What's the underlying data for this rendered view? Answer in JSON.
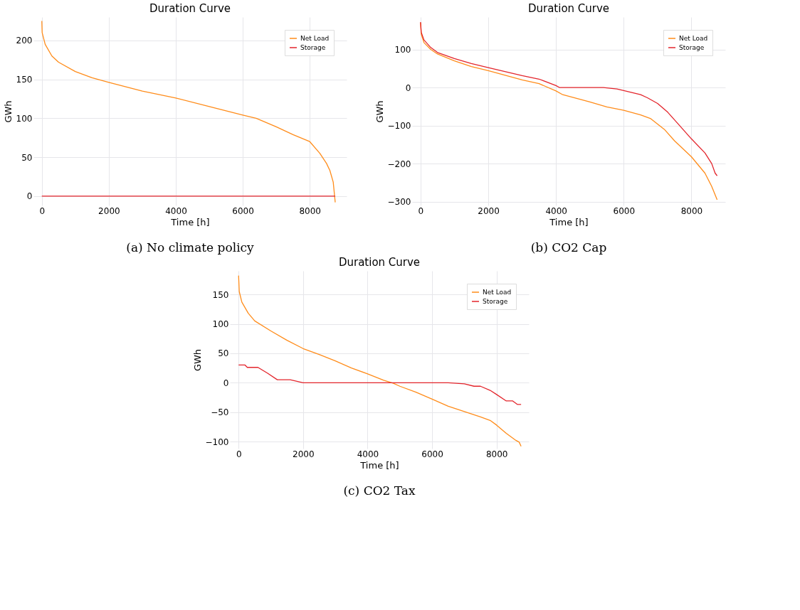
{
  "chart_data": [
    {
      "type": "line",
      "title": "Duration Curve",
      "xlabel": "Time [h]",
      "ylabel": "GWh",
      "annotations": [
        "(a) No climate policy"
      ],
      "xlim": [
        -250,
        9100
      ],
      "xticks": [
        0,
        2000,
        4000,
        6000,
        8000
      ],
      "ylim": [
        -12,
        230
      ],
      "yticks": [
        0,
        50,
        100,
        150,
        200
      ],
      "grid": true,
      "legend": "top right",
      "series": [
        {
          "name": "Net Load",
          "color": "#ff8c1a",
          "x": [
            0,
            10,
            100,
            300,
            500,
            1000,
            1500,
            2000,
            3000,
            4000,
            5000,
            6000,
            6400,
            7000,
            7500,
            8000,
            8300,
            8500,
            8600,
            8700,
            8760
          ],
          "values": [
            225,
            210,
            195,
            180,
            172,
            160,
            152,
            146,
            135,
            126,
            115,
            104,
            100,
            89,
            79,
            70,
            55,
            42,
            33,
            18,
            -8
          ]
        },
        {
          "name": "Storage",
          "color": "#e3242b",
          "x": [
            0,
            8760
          ],
          "values": [
            0,
            0
          ]
        }
      ]
    },
    {
      "type": "line",
      "title": "Duration Curve",
      "xlabel": "Time [h]",
      "ylabel": "GWh",
      "annotations": [
        "(b) CO2 Cap"
      ],
      "xlim": [
        -250,
        9000
      ],
      "xticks": [
        0,
        2000,
        4000,
        6000,
        8000
      ],
      "ylim": [
        -310,
        185
      ],
      "yticks": [
        -300,
        -200,
        -100,
        0,
        100
      ],
      "grid": true,
      "legend": "top right",
      "series": [
        {
          "name": "Net Load",
          "color": "#ff8c1a",
          "x": [
            0,
            20,
            100,
            300,
            500,
            1000,
            1500,
            2000,
            3000,
            3500,
            4000,
            4200,
            5000,
            5500,
            6000,
            6500,
            6800,
            7200,
            7500,
            8000,
            8400,
            8600,
            8760
          ],
          "values": [
            170,
            140,
            118,
            100,
            88,
            70,
            55,
            44,
            20,
            10,
            -9,
            -19,
            -38,
            -51,
            -60,
            -72,
            -82,
            -110,
            -140,
            -182,
            -225,
            -260,
            -295
          ]
        },
        {
          "name": "Storage",
          "color": "#e3242b",
          "x": [
            0,
            20,
            100,
            300,
            500,
            1000,
            1500,
            2000,
            3000,
            3500,
            4000,
            4100,
            5400,
            5800,
            6000,
            6500,
            6700,
            7000,
            7300,
            7600,
            8000,
            8400,
            8600,
            8700,
            8760
          ],
          "values": [
            172,
            145,
            125,
            105,
            92,
            76,
            63,
            52,
            31,
            22,
            5,
            0,
            0,
            -4,
            -8,
            -19,
            -27,
            -42,
            -65,
            -95,
            -135,
            -172,
            -200,
            -225,
            -232
          ]
        }
      ]
    },
    {
      "type": "line",
      "title": "Duration Curve",
      "xlabel": "Time [h]",
      "ylabel": "GWh",
      "annotations": [
        "(c) CO2 Tax"
      ],
      "xlim": [
        -270,
        9000
      ],
      "xticks": [
        0,
        2000,
        4000,
        6000,
        8000
      ],
      "ylim": [
        -112,
        190
      ],
      "yticks": [
        -100,
        -50,
        0,
        50,
        100,
        150
      ],
      "grid": true,
      "legend": "top right",
      "series": [
        {
          "name": "Net Load",
          "color": "#ff8c1a",
          "x": [
            0,
            20,
            100,
            300,
            500,
            1000,
            1500,
            2000,
            2500,
            3000,
            3500,
            4000,
            4500,
            4800,
            5000,
            5500,
            6000,
            6500,
            7000,
            7500,
            7800,
            8000,
            8300,
            8600,
            8700,
            8760
          ],
          "values": [
            182,
            155,
            137,
            118,
            105,
            88,
            72,
            58,
            48,
            37,
            25,
            15,
            4,
            -1,
            -6,
            -16,
            -28,
            -40,
            -49,
            -58,
            -64,
            -72,
            -86,
            -98,
            -101,
            -108
          ]
        },
        {
          "name": "Storage",
          "color": "#e3242b",
          "x": [
            0,
            200,
            270,
            600,
            900,
            1200,
            1600,
            2000,
            6500,
            7000,
            7300,
            7500,
            7800,
            8000,
            8300,
            8500,
            8650,
            8760
          ],
          "values": [
            30,
            30,
            26,
            26,
            16,
            5,
            5,
            0,
            0,
            -2,
            -6,
            -6,
            -13,
            -20,
            -31,
            -31,
            -37,
            -37
          ]
        }
      ]
    }
  ]
}
